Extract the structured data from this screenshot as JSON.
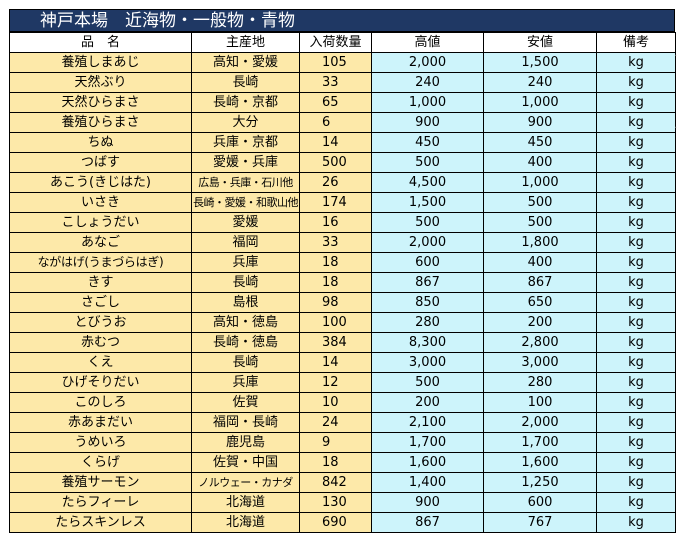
{
  "title": "神戸本場　近海物・一般物・青物",
  "headers": [
    "品　名",
    "主産地",
    "入荷数量",
    "高値",
    "安値",
    "備考"
  ],
  "rows": [
    {
      "name": "養殖しまあじ",
      "origin": "高知・愛媛",
      "qty": "105",
      "high": "2,000",
      "low": "1,500",
      "note": "kg"
    },
    {
      "name": "天然ぶり",
      "origin": "長崎",
      "qty": "33",
      "high": "240",
      "low": "240",
      "note": "kg"
    },
    {
      "name": "天然ひらまさ",
      "origin": "長崎・京都",
      "qty": "65",
      "high": "1,000",
      "low": "1,000",
      "note": "kg"
    },
    {
      "name": "養殖ひらまさ",
      "origin": "大分",
      "qty": "6",
      "high": "900",
      "low": "900",
      "note": "kg"
    },
    {
      "name": "ちぬ",
      "origin": "兵庫・京都",
      "qty": "14",
      "high": "450",
      "low": "450",
      "note": "kg"
    },
    {
      "name": "つばす",
      "origin": "愛媛・兵庫",
      "qty": "500",
      "high": "500",
      "low": "400",
      "note": "kg"
    },
    {
      "name": "あこう(きじはた)",
      "origin": "広島・兵庫・石川他",
      "qty": "26",
      "high": "4,500",
      "low": "1,000",
      "note": "kg"
    },
    {
      "name": "いさき",
      "origin": "長崎・愛媛・和歌山他",
      "qty": "174",
      "high": "1,500",
      "low": "500",
      "note": "kg"
    },
    {
      "name": "こしょうだい",
      "origin": "愛媛",
      "qty": "16",
      "high": "500",
      "low": "500",
      "note": "kg"
    },
    {
      "name": "あなご",
      "origin": "福岡",
      "qty": "33",
      "high": "2,000",
      "low": "1,800",
      "note": "kg"
    },
    {
      "name": "ながはげ(うまづらはぎ)",
      "origin": "兵庫",
      "qty": "18",
      "high": "600",
      "low": "400",
      "note": "kg"
    },
    {
      "name": "きす",
      "origin": "長崎",
      "qty": "18",
      "high": "867",
      "low": "867",
      "note": "kg"
    },
    {
      "name": "さごし",
      "origin": "島根",
      "qty": "98",
      "high": "850",
      "low": "650",
      "note": "kg"
    },
    {
      "name": "とびうお",
      "origin": "高知・徳島",
      "qty": "100",
      "high": "280",
      "low": "200",
      "note": "kg"
    },
    {
      "name": "赤むつ",
      "origin": "長崎・徳島",
      "qty": "384",
      "high": "8,300",
      "low": "2,800",
      "note": "kg"
    },
    {
      "name": "くえ",
      "origin": "長崎",
      "qty": "14",
      "high": "3,000",
      "low": "3,000",
      "note": "kg"
    },
    {
      "name": "ひげそりだい",
      "origin": "兵庫",
      "qty": "12",
      "high": "500",
      "low": "280",
      "note": "kg"
    },
    {
      "name": "このしろ",
      "origin": "佐賀",
      "qty": "10",
      "high": "200",
      "low": "100",
      "note": "kg"
    },
    {
      "name": "赤あまだい",
      "origin": "福岡・長崎",
      "qty": "24",
      "high": "2,100",
      "low": "2,000",
      "note": "kg"
    },
    {
      "name": "うめいろ",
      "origin": "鹿児島",
      "qty": "9",
      "high": "1,700",
      "low": "1,700",
      "note": "kg"
    },
    {
      "name": "くらげ",
      "origin": "佐賀・中国",
      "qty": "18",
      "high": "1,600",
      "low": "1,600",
      "note": "kg"
    },
    {
      "name": "養殖サーモン",
      "origin": "ノルウェー・カナダ",
      "qty": "842",
      "high": "1,400",
      "low": "1,250",
      "note": "kg"
    },
    {
      "name": "たらフィーレ",
      "origin": "北海道",
      "qty": "130",
      "high": "900",
      "low": "600",
      "note": "kg"
    },
    {
      "name": "たらスキンレス",
      "origin": "北海道",
      "qty": "690",
      "high": "867",
      "low": "767",
      "note": "kg"
    }
  ]
}
